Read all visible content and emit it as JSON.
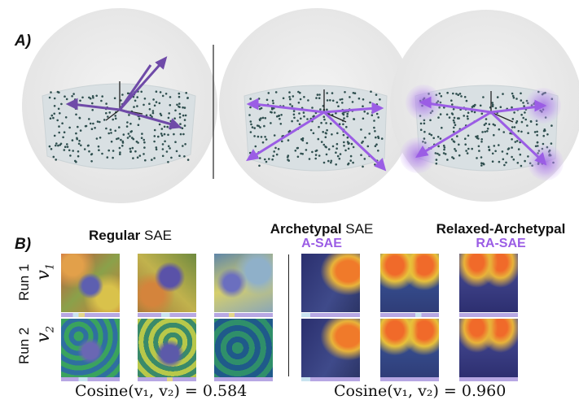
{
  "panel_a": {
    "label": "A)"
  },
  "panel_b": {
    "label": "B)",
    "columns": [
      {
        "bold": "Regular",
        "rest": " SAE",
        "short": ""
      },
      {
        "bold": "Archetypal",
        "rest": " SAE",
        "short": "A-SAE"
      },
      {
        "bold": "Relaxed-Archetypal",
        "rest": "",
        "short": "RA-SAE"
      }
    ],
    "rows": [
      {
        "run": "Run 1",
        "vector": "v",
        "sub": "1"
      },
      {
        "run": "Run 2",
        "vector": "v",
        "sub": "2"
      }
    ],
    "cosine_left": "Cosine(v₁, v₂) = 0.584",
    "cosine_right": "Cosine(v₁, v₂) = 0.960"
  },
  "colors": {
    "accent": "#9b5de5",
    "arrow_regular": "#6f4aa8",
    "cloud": "#d9e0e3",
    "dots": "#2f4f4f"
  }
}
